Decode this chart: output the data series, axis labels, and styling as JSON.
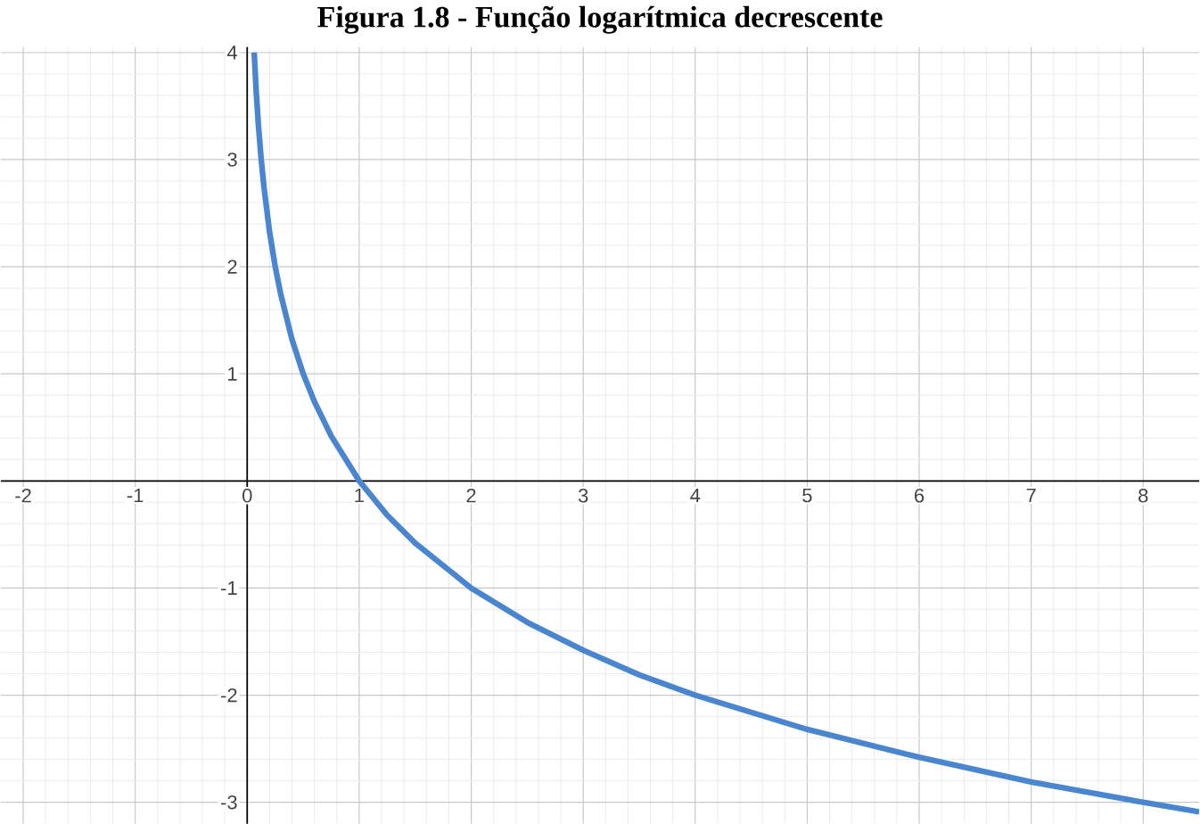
{
  "chart_data": {
    "type": "line",
    "title": "Figura 1.8 - Função logarítmica decrescente",
    "x": [
      0.0625,
      0.08,
      0.1,
      0.125,
      0.15,
      0.2,
      0.25,
      0.3,
      0.4,
      0.5,
      0.6,
      0.75,
      1,
      1.25,
      1.5,
      2,
      2.5,
      3,
      3.5,
      4,
      5,
      6,
      7,
      8,
      8.5
    ],
    "series": [
      {
        "color": "#4a86d0",
        "values": [
          4,
          3.64,
          3.32,
          3,
          2.74,
          2.32,
          2,
          1.74,
          1.32,
          1,
          0.74,
          0.42,
          0,
          -0.32,
          -0.58,
          -1,
          -1.32,
          -1.58,
          -1.81,
          -2,
          -2.32,
          -2.58,
          -2.81,
          -3,
          -3.09
        ]
      }
    ],
    "xlim": [
      -2.2,
      8.5
    ],
    "ylim": [
      -3.2,
      4.05
    ],
    "xticks": [
      -2,
      -1,
      0,
      1,
      2,
      3,
      4,
      5,
      6,
      7,
      8
    ],
    "yticks": [
      -3,
      -2,
      -1,
      {
        "value": 0,
        "label": null
      },
      1,
      2,
      3,
      4
    ],
    "grid": true,
    "marker": "none",
    "line_style": "solid"
  }
}
